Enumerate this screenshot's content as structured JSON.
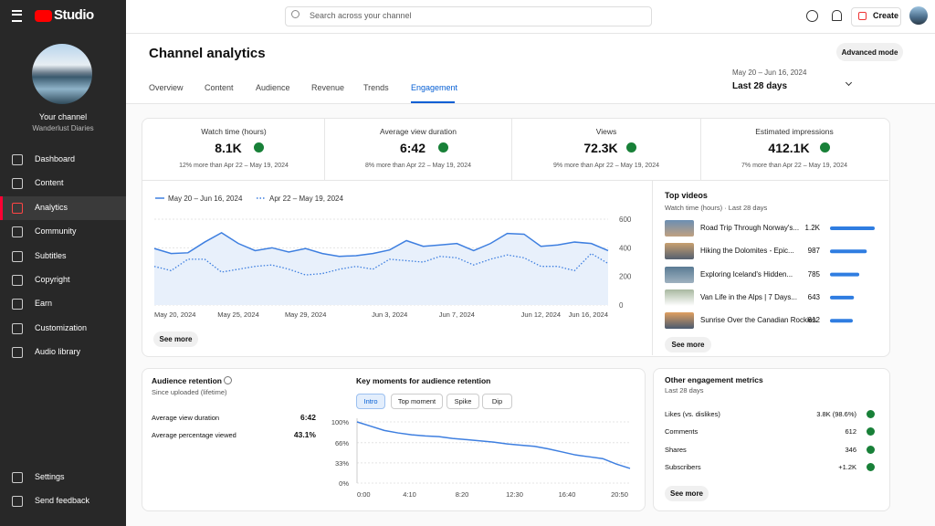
{
  "topbar": {
    "brand": "Studio",
    "search": "Search across your channel",
    "create": "Create"
  },
  "sidebar": {
    "channel_label": "Your channel",
    "channel_name": "Wanderlust Diaries",
    "nav": [
      "Dashboard",
      "Content",
      "Analytics",
      "Community",
      "Subtitles",
      "Copyright",
      "Earn",
      "Customization",
      "Audio library"
    ],
    "active": 2,
    "footer": [
      "Settings",
      "Send feedback"
    ]
  },
  "header": {
    "title": "Channel analytics",
    "tabs": [
      "Overview",
      "Content",
      "Audience",
      "Revenue",
      "Trends",
      "Engagement"
    ],
    "active_tab": 5,
    "advanced": "Advanced mode",
    "date_range": "May 20 – Jun 16, 2024",
    "period": "Last 28 days"
  },
  "metrics": [
    {
      "label": "Watch time (hours)",
      "value": "8.1K",
      "comparison": "12% more than Apr 22 – May 19, 2024"
    },
    {
      "label": "Average view duration",
      "value": "6:42",
      "comparison": "8% more than Apr 22 – May 19, 2024"
    },
    {
      "label": "Views",
      "value": "72.3K",
      "comparison": "9% more than Apr 22 – May 19, 2024"
    },
    {
      "label": "Estimated impressions",
      "value": "412.1K",
      "comparison": "7% more than Apr 22 – May 19, 2024"
    }
  ],
  "chart_data": [
    {
      "type": "line",
      "categories": [
        "May 20, 2024",
        null,
        null,
        null,
        null,
        "May 25, 2024",
        null,
        null,
        null,
        "May 29, 2024",
        null,
        null,
        null,
        null,
        "Jun 3, 2024",
        null,
        null,
        null,
        "Jun 7, 2024",
        null,
        null,
        null,
        null,
        "Jun 12, 2024",
        null,
        null,
        null,
        "Jun 16, 2024"
      ],
      "series": [
        {
          "name": "May 20 – Jun 16, 2024",
          "color": "#3e7fe0",
          "style": "solid",
          "values": [
            395,
            360,
            365,
            440,
            505,
            430,
            380,
            400,
            370,
            395,
            360,
            340,
            345,
            360,
            385,
            450,
            410,
            420,
            430,
            380,
            430,
            500,
            495,
            410,
            420,
            440,
            430,
            380
          ]
        },
        {
          "name": "Apr 22 – May 19, 2024",
          "color": "#3e7fe0",
          "style": "dotted",
          "values": [
            270,
            240,
            320,
            320,
            230,
            250,
            270,
            280,
            250,
            210,
            220,
            250,
            270,
            250,
            320,
            310,
            300,
            340,
            330,
            280,
            320,
            350,
            330,
            270,
            270,
            240,
            360,
            290
          ]
        }
      ],
      "ylim": [
        0,
        600
      ],
      "yticks": [
        0,
        200,
        400,
        600
      ],
      "grid": true,
      "see_more": "See more"
    },
    {
      "type": "bar",
      "title": "Top videos",
      "subtitle": "Watch time (hours) · Last 28 days",
      "categories": [
        "Road Trip Through Norway's...",
        "Hiking the Dolomites - Epic...",
        "Exploring Iceland's Hidden...",
        "Van Life in the Alps | 7 Days...",
        "Sunrise Over the Canadian Rockies"
      ],
      "values": [
        1200,
        987,
        785,
        643,
        612
      ],
      "value_labels": [
        "1.2K",
        "987",
        "785",
        "643",
        "612"
      ],
      "color": "#2f7de1",
      "see_more": "See more"
    },
    {
      "type": "line",
      "title": "Key moments for audience retention",
      "x": [
        0,
        65,
        130,
        195,
        260,
        325,
        390,
        455,
        520,
        585,
        650,
        715,
        780,
        845,
        910,
        975,
        1040,
        1105,
        1170,
        1235,
        1300
      ],
      "values": [
        100,
        93,
        86,
        82,
        79,
        77,
        76,
        73,
        71,
        69,
        67,
        64,
        62,
        60,
        56,
        51,
        46,
        43,
        40,
        31,
        24
      ],
      "color": "#3e7fe0",
      "xlim": [
        0,
        1300
      ],
      "xticks": [
        {
          "value": 0,
          "label": "0:00"
        },
        {
          "value": 250,
          "label": "4:10"
        },
        {
          "value": 500,
          "label": "8:20"
        },
        {
          "value": 750,
          "label": "12:30"
        },
        {
          "value": 1000,
          "label": "16:40"
        },
        {
          "value": 1250,
          "label": "20:50"
        }
      ],
      "ylim": [
        0,
        100
      ],
      "yticks": [
        {
          "value": 0,
          "label": "0%"
        },
        {
          "value": 33,
          "label": "33%"
        },
        {
          "value": 66,
          "label": "66%"
        },
        {
          "value": 100,
          "label": "100%"
        }
      ],
      "grid": true
    }
  ],
  "key_moments": {
    "buttons": [
      "Intro",
      "Top moment",
      "Spike",
      "Dip"
    ],
    "active": 0
  },
  "retention": {
    "title": "Audience retention",
    "subtitle": "Since uploaded (lifetime)",
    "rows": [
      [
        "Average view duration",
        "6:42"
      ],
      [
        "Average percentage viewed",
        "43.1%"
      ]
    ]
  },
  "engagement": {
    "title": "Other engagement metrics",
    "subtitle": "Last 28 days",
    "rows": [
      [
        "Likes (vs. dislikes)",
        "3.8K (98.6%)"
      ],
      [
        "Comments",
        "612"
      ],
      [
        "Shares",
        "346"
      ],
      [
        "Subscribers",
        "+1.2K"
      ]
    ],
    "see_more": "See more"
  }
}
